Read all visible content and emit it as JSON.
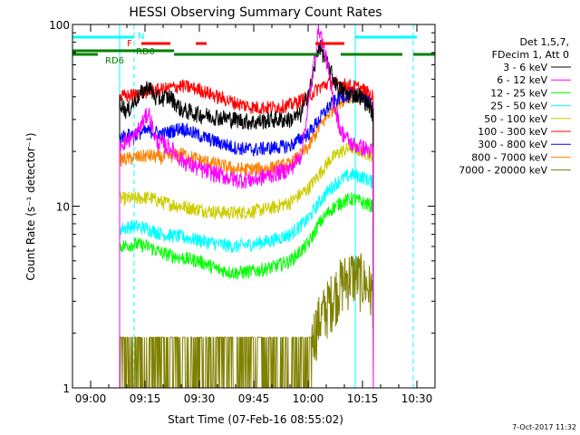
{
  "chart_data": {
    "type": "line",
    "title": "HESSI Observing Summary Count Rates",
    "xlabel": "Start Time (07-Feb-16 08:55:02)",
    "ylabel": "Count Rate (s⁻¹ detector⁻¹)",
    "yscale": "log",
    "ylim": [
      1,
      100
    ],
    "xlim": [
      "08:55",
      "10:35"
    ],
    "x_ticks": [
      "09:00",
      "09:15",
      "09:30",
      "09:45",
      "10:00",
      "10:15",
      "10:30"
    ],
    "y_ticks": [
      "1",
      "10",
      "100"
    ],
    "grid": false,
    "legend": {
      "placement": "right",
      "header": [
        "Det 1,5,7,",
        "FDecim 1, Att 0"
      ]
    },
    "series": [
      {
        "name": "3 - 6 keV",
        "color": "#000000",
        "points": [
          [
            "09:08",
            38
          ],
          [
            "09:10",
            33
          ],
          [
            "09:13",
            40
          ],
          [
            "09:16",
            46
          ],
          [
            "09:18",
            39
          ],
          [
            "09:22",
            40
          ],
          [
            "09:25",
            34
          ],
          [
            "09:30",
            32
          ],
          [
            "09:35",
            31
          ],
          [
            "09:40",
            30
          ],
          [
            "09:45",
            29
          ],
          [
            "09:50",
            30
          ],
          [
            "09:55",
            30
          ],
          [
            "09:58",
            32
          ],
          [
            "10:01",
            48
          ],
          [
            "10:03",
            78
          ],
          [
            "10:05",
            62
          ],
          [
            "10:08",
            46
          ],
          [
            "10:11",
            41
          ],
          [
            "10:14",
            41
          ],
          [
            "10:17",
            36
          ],
          [
            "10:18",
            31
          ]
        ]
      },
      {
        "name": "6 - 12 keV",
        "color": "#ff00ff",
        "points": [
          [
            "09:08",
            22
          ],
          [
            "09:12",
            24
          ],
          [
            "09:16",
            33
          ],
          [
            "09:18",
            23
          ],
          [
            "09:22",
            21
          ],
          [
            "09:25",
            18
          ],
          [
            "09:30",
            16
          ],
          [
            "09:35",
            15
          ],
          [
            "09:40",
            14
          ],
          [
            "09:45",
            14
          ],
          [
            "09:50",
            15
          ],
          [
            "09:55",
            16
          ],
          [
            "09:58",
            19
          ],
          [
            "10:00",
            35
          ],
          [
            "10:02",
            70
          ],
          [
            "10:03",
            97
          ],
          [
            "10:05",
            65
          ],
          [
            "10:07",
            38
          ],
          [
            "10:09",
            26
          ],
          [
            "10:12",
            22
          ],
          [
            "10:15",
            21
          ],
          [
            "10:18",
            20
          ]
        ]
      },
      {
        "name": "12 - 25 keV",
        "color": "#00ff00",
        "points": [
          [
            "09:08",
            6
          ],
          [
            "09:12",
            6.2
          ],
          [
            "09:16",
            6
          ],
          [
            "09:20",
            5.5
          ],
          [
            "09:25",
            5.2
          ],
          [
            "09:30",
            5
          ],
          [
            "09:35",
            4.5
          ],
          [
            "09:40",
            4.3
          ],
          [
            "09:45",
            4.4
          ],
          [
            "09:50",
            4.6
          ],
          [
            "09:55",
            5
          ],
          [
            "10:00",
            6.2
          ],
          [
            "10:03",
            8
          ],
          [
            "10:06",
            9.5
          ],
          [
            "10:09",
            10.5
          ],
          [
            "10:12",
            11
          ],
          [
            "10:15",
            10.5
          ],
          [
            "10:18",
            10
          ]
        ]
      },
      {
        "name": "25 - 50 keV",
        "color": "#00ffff",
        "points": [
          [
            "09:08",
            7.5
          ],
          [
            "09:12",
            7.8
          ],
          [
            "09:16",
            7.5
          ],
          [
            "09:20",
            7
          ],
          [
            "09:25",
            6.8
          ],
          [
            "09:30",
            6.5
          ],
          [
            "09:35",
            6.2
          ],
          [
            "09:40",
            6
          ],
          [
            "09:45",
            6.2
          ],
          [
            "09:50",
            6.5
          ],
          [
            "09:55",
            7
          ],
          [
            "10:00",
            8.5
          ],
          [
            "10:03",
            10.5
          ],
          [
            "10:06",
            12.5
          ],
          [
            "10:09",
            14
          ],
          [
            "10:12",
            15
          ],
          [
            "10:15",
            14.5
          ],
          [
            "10:18",
            13.5
          ]
        ]
      },
      {
        "name": "50 - 100 keV",
        "color": "#cccc00",
        "points": [
          [
            "09:08",
            11
          ],
          [
            "09:12",
            11
          ],
          [
            "09:16",
            11.2
          ],
          [
            "09:20",
            10.5
          ],
          [
            "09:25",
            10
          ],
          [
            "09:30",
            9.6
          ],
          [
            "09:35",
            9.3
          ],
          [
            "09:40",
            9.2
          ],
          [
            "09:45",
            9.4
          ],
          [
            "09:50",
            9.8
          ],
          [
            "09:55",
            10.5
          ],
          [
            "10:00",
            12.5
          ],
          [
            "10:03",
            15
          ],
          [
            "10:06",
            18
          ],
          [
            "10:09",
            20
          ],
          [
            "10:12",
            21
          ],
          [
            "10:15",
            20
          ],
          [
            "10:18",
            19
          ]
        ]
      },
      {
        "name": "100 - 300 keV",
        "color": "#ff0000",
        "points": [
          [
            "09:08",
            40
          ],
          [
            "09:12",
            41
          ],
          [
            "09:16",
            43
          ],
          [
            "09:20",
            44
          ],
          [
            "09:25",
            46
          ],
          [
            "09:30",
            44
          ],
          [
            "09:35",
            40
          ],
          [
            "09:40",
            37
          ],
          [
            "09:45",
            35
          ],
          [
            "09:50",
            35
          ],
          [
            "09:55",
            36
          ],
          [
            "10:00",
            40
          ],
          [
            "10:03",
            45
          ],
          [
            "10:06",
            48
          ],
          [
            "10:09",
            47
          ],
          [
            "10:12",
            46
          ],
          [
            "10:15",
            44
          ],
          [
            "10:18",
            40
          ]
        ]
      },
      {
        "name": "300 - 800 keV",
        "color": "#0000ff",
        "points": [
          [
            "09:08",
            24
          ],
          [
            "09:12",
            25
          ],
          [
            "09:16",
            26
          ],
          [
            "09:20",
            25
          ],
          [
            "09:25",
            27
          ],
          [
            "09:30",
            24.5
          ],
          [
            "09:35",
            22.5
          ],
          [
            "09:40",
            21
          ],
          [
            "09:45",
            20.5
          ],
          [
            "09:50",
            21
          ],
          [
            "09:55",
            21.5
          ],
          [
            "10:00",
            25
          ],
          [
            "10:03",
            30
          ],
          [
            "10:06",
            36
          ],
          [
            "10:09",
            40
          ],
          [
            "10:12",
            42
          ],
          [
            "10:15",
            40
          ],
          [
            "10:18",
            36
          ]
        ]
      },
      {
        "name": "800 - 7000 keV",
        "color": "#ff8000",
        "points": [
          [
            "09:08",
            18
          ],
          [
            "09:12",
            18.5
          ],
          [
            "09:16",
            19
          ],
          [
            "09:20",
            18.5
          ],
          [
            "09:25",
            19.5
          ],
          [
            "09:30",
            18
          ],
          [
            "09:35",
            17
          ],
          [
            "09:40",
            16
          ],
          [
            "09:45",
            16
          ],
          [
            "09:50",
            16.3
          ],
          [
            "09:55",
            17
          ],
          [
            "10:00",
            21
          ],
          [
            "10:03",
            27
          ],
          [
            "10:06",
            33
          ],
          [
            "10:09",
            38
          ],
          [
            "10:12",
            41
          ],
          [
            "10:15",
            39
          ],
          [
            "10:18",
            34
          ]
        ]
      },
      {
        "name": "7000 - 20000 keV",
        "color": "#808000",
        "points": [
          [
            "09:08",
            1.5
          ],
          [
            "09:15",
            1.5
          ],
          [
            "09:25",
            1.5
          ],
          [
            "09:35",
            1.5
          ],
          [
            "09:45",
            1.5
          ],
          [
            "09:55",
            1.5
          ],
          [
            "10:00",
            1.8
          ],
          [
            "10:03",
            2.5
          ],
          [
            "10:06",
            3.2
          ],
          [
            "10:09",
            4
          ],
          [
            "10:12",
            4.5
          ],
          [
            "10:15",
            4.2
          ],
          [
            "10:18",
            3.5
          ]
        ]
      }
    ],
    "annotations": {
      "vertical_markers": [
        {
          "color": "#00ffff",
          "style": "solid",
          "time": "09:08"
        },
        {
          "color": "#00ffff",
          "style": "dashed",
          "time": "09:12"
        },
        {
          "color": "#00ffff",
          "style": "solid",
          "time": "10:13"
        },
        {
          "color": "#00ffff",
          "style": "dashed",
          "time": "10:29"
        }
      ],
      "bars": [
        {
          "label": "N",
          "color": "#00ffff",
          "segments": [
            [
              "08:55",
              "09:12"
            ],
            [
              "10:13",
              "10:30"
            ]
          ]
        },
        {
          "label": "F",
          "color": "#ff0000",
          "segments": [
            [
              "09:14",
              "09:22"
            ],
            [
              "09:29",
              "09:32"
            ],
            [
              "10:02",
              "10:10"
            ]
          ]
        },
        {
          "label": "RD0",
          "color": "#008000",
          "segments": [
            [
              "08:55",
              "09:02"
            ],
            [
              "09:23",
              "10:03"
            ],
            [
              "10:09",
              "10:26"
            ],
            [
              "10:29",
              "10:35"
            ]
          ]
        },
        {
          "label": "RD6",
          "color": "#008000",
          "segments": [
            [
              "08:55",
              "09:14"
            ],
            [
              "09:14",
              "09:23"
            ]
          ]
        }
      ]
    }
  },
  "timestamp": "7-Oct-2017 11:32"
}
